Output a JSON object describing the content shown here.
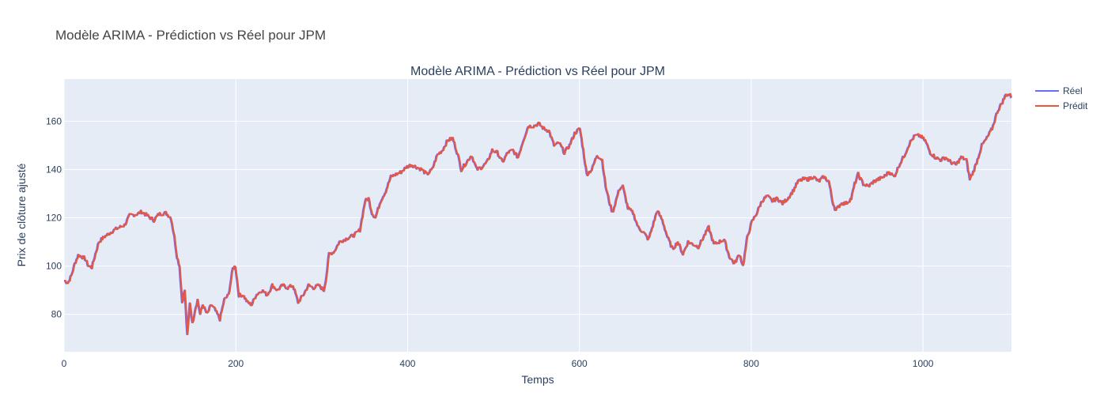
{
  "page_title": "Modèle ARIMA - Prédiction vs Réel pour JPM",
  "chart_data": {
    "type": "line",
    "title": "Modèle ARIMA - Prédiction vs Réel pour JPM",
    "xlabel": "Temps",
    "ylabel": "Prix de clôture ajusté",
    "xlim": [
      0,
      1103
    ],
    "ylim": [
      64.5,
      177.5
    ],
    "xticks": [
      0,
      200,
      400,
      600,
      800,
      1000
    ],
    "yticks": [
      80,
      100,
      120,
      140,
      160
    ],
    "grid": true,
    "legend_position": "top-right",
    "anchors": [
      [
        0,
        94
      ],
      [
        4,
        93
      ],
      [
        8,
        96
      ],
      [
        12,
        101
      ],
      [
        16,
        104.5
      ],
      [
        20,
        104
      ],
      [
        24,
        103
      ],
      [
        28,
        100
      ],
      [
        32,
        99.5
      ],
      [
        36,
        105
      ],
      [
        40,
        110
      ],
      [
        46,
        112
      ],
      [
        52,
        113.5
      ],
      [
        58,
        115
      ],
      [
        64,
        116
      ],
      [
        70,
        117
      ],
      [
        76,
        121
      ],
      [
        84,
        121.5
      ],
      [
        90,
        122.5
      ],
      [
        96,
        121
      ],
      [
        104,
        119
      ],
      [
        110,
        121.5
      ],
      [
        118,
        122
      ],
      [
        124,
        120
      ],
      [
        128,
        112
      ],
      [
        131,
        104
      ],
      [
        134,
        100
      ],
      [
        137,
        85
      ],
      [
        140,
        90
      ],
      [
        143,
        71
      ],
      [
        146,
        85
      ],
      [
        149,
        76
      ],
      [
        152,
        82
      ],
      [
        155,
        86
      ],
      [
        158,
        80
      ],
      [
        161,
        84
      ],
      [
        166,
        80
      ],
      [
        171,
        84
      ],
      [
        175,
        82
      ],
      [
        181,
        78
      ],
      [
        186,
        86
      ],
      [
        191,
        88
      ],
      [
        196,
        99
      ],
      [
        199,
        100
      ],
      [
        203,
        88
      ],
      [
        208,
        88
      ],
      [
        213,
        85
      ],
      [
        218,
        84
      ],
      [
        223,
        88
      ],
      [
        230,
        90
      ],
      [
        236,
        88
      ],
      [
        242,
        92
      ],
      [
        248,
        90
      ],
      [
        254,
        92
      ],
      [
        260,
        91
      ],
      [
        266,
        92
      ],
      [
        272,
        85
      ],
      [
        278,
        88
      ],
      [
        284,
        92
      ],
      [
        290,
        91
      ],
      [
        296,
        92
      ],
      [
        302,
        90
      ],
      [
        305,
        96
      ],
      [
        308,
        105
      ],
      [
        314,
        106
      ],
      [
        320,
        110
      ],
      [
        326,
        111
      ],
      [
        332,
        112
      ],
      [
        338,
        113
      ],
      [
        344,
        115
      ],
      [
        350,
        127
      ],
      [
        354,
        128
      ],
      [
        358,
        122
      ],
      [
        362,
        120
      ],
      [
        368,
        127
      ],
      [
        374,
        131
      ],
      [
        380,
        137
      ],
      [
        386,
        138
      ],
      [
        392,
        139
      ],
      [
        398,
        141
      ],
      [
        404,
        142
      ],
      [
        410,
        141
      ],
      [
        416,
        140
      ],
      [
        422,
        138
      ],
      [
        428,
        140
      ],
      [
        434,
        146
      ],
      [
        440,
        148
      ],
      [
        446,
        152
      ],
      [
        452,
        153
      ],
      [
        458,
        146
      ],
      [
        462,
        140
      ],
      [
        468,
        143
      ],
      [
        474,
        146
      ],
      [
        480,
        140
      ],
      [
        486,
        141
      ],
      [
        492,
        143
      ],
      [
        498,
        148
      ],
      [
        504,
        147
      ],
      [
        510,
        143
      ],
      [
        516,
        147
      ],
      [
        522,
        148
      ],
      [
        528,
        145
      ],
      [
        534,
        152
      ],
      [
        540,
        158
      ],
      [
        546,
        158
      ],
      [
        552,
        159
      ],
      [
        558,
        157
      ],
      [
        564,
        156
      ],
      [
        570,
        150
      ],
      [
        576,
        151
      ],
      [
        582,
        147
      ],
      [
        588,
        150
      ],
      [
        594,
        155
      ],
      [
        600,
        157
      ],
      [
        604,
        148
      ],
      [
        608,
        138
      ],
      [
        614,
        140
      ],
      [
        620,
        146
      ],
      [
        626,
        144
      ],
      [
        630,
        133
      ],
      [
        634,
        127
      ],
      [
        638,
        122
      ],
      [
        642,
        127
      ],
      [
        646,
        132
      ],
      [
        650,
        133
      ],
      [
        656,
        124
      ],
      [
        662,
        122
      ],
      [
        668,
        116
      ],
      [
        674,
        114
      ],
      [
        680,
        111
      ],
      [
        686,
        118
      ],
      [
        690,
        123
      ],
      [
        696,
        119
      ],
      [
        702,
        112
      ],
      [
        708,
        107
      ],
      [
        714,
        110
      ],
      [
        720,
        105
      ],
      [
        726,
        110
      ],
      [
        732,
        109
      ],
      [
        738,
        108
      ],
      [
        744,
        112
      ],
      [
        750,
        116
      ],
      [
        756,
        109
      ],
      [
        762,
        110
      ],
      [
        768,
        111
      ],
      [
        774,
        104
      ],
      [
        780,
        101
      ],
      [
        786,
        105
      ],
      [
        790,
        100
      ],
      [
        795,
        112
      ],
      [
        800,
        118
      ],
      [
        806,
        122
      ],
      [
        812,
        127
      ],
      [
        818,
        129
      ],
      [
        824,
        127
      ],
      [
        830,
        128
      ],
      [
        836,
        126
      ],
      [
        842,
        128
      ],
      [
        848,
        131
      ],
      [
        854,
        135
      ],
      [
        860,
        136
      ],
      [
        866,
        136
      ],
      [
        872,
        137
      ],
      [
        878,
        135
      ],
      [
        884,
        137
      ],
      [
        890,
        135
      ],
      [
        894,
        127
      ],
      [
        898,
        123
      ],
      [
        904,
        126
      ],
      [
        910,
        126
      ],
      [
        916,
        128
      ],
      [
        920,
        134
      ],
      [
        924,
        138
      ],
      [
        930,
        134
      ],
      [
        936,
        133
      ],
      [
        942,
        135
      ],
      [
        948,
        136
      ],
      [
        954,
        137
      ],
      [
        960,
        139
      ],
      [
        966,
        137
      ],
      [
        972,
        142
      ],
      [
        978,
        146
      ],
      [
        984,
        151
      ],
      [
        990,
        154
      ],
      [
        996,
        154
      ],
      [
        1002,
        152
      ],
      [
        1008,
        147
      ],
      [
        1014,
        145
      ],
      [
        1020,
        144
      ],
      [
        1026,
        145
      ],
      [
        1032,
        143
      ],
      [
        1038,
        142
      ],
      [
        1044,
        145
      ],
      [
        1050,
        144
      ],
      [
        1054,
        136
      ],
      [
        1058,
        139
      ],
      [
        1062,
        143
      ],
      [
        1068,
        150
      ],
      [
        1074,
        153
      ],
      [
        1080,
        157
      ],
      [
        1086,
        164
      ],
      [
        1092,
        168
      ],
      [
        1096,
        171
      ],
      [
        1100,
        171
      ],
      [
        1103,
        170
      ]
    ],
    "series": [
      {
        "name": "Réel",
        "color": "#636efa"
      },
      {
        "name": "Prédit",
        "color": "#ef553b"
      }
    ]
  }
}
